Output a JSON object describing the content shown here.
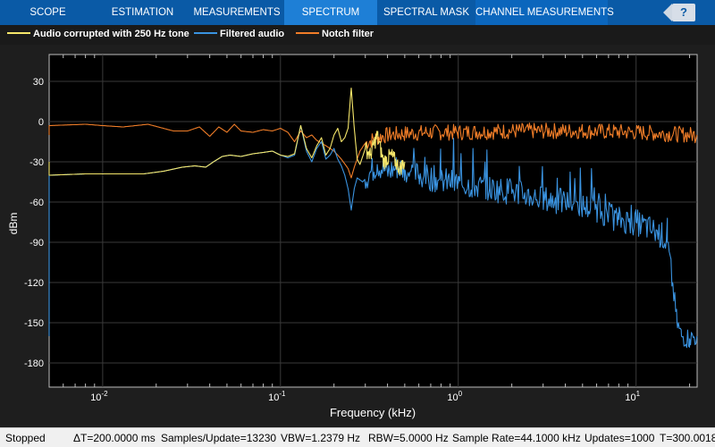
{
  "tabs": [
    {
      "label": "SCOPE",
      "active": false
    },
    {
      "label": "ESTIMATION",
      "active": false
    },
    {
      "label": "MEASUREMENTS",
      "active": false
    },
    {
      "label": "SPECTRUM",
      "active": true
    },
    {
      "label": "SPECTRAL MASK",
      "active": false
    },
    {
      "label": "CHANNEL MEASUREMENTS",
      "active": false
    }
  ],
  "help_label": "?",
  "legend": [
    {
      "label": "Audio corrupted with 250 Hz tone",
      "color": "#f5e66a"
    },
    {
      "label": "Filtered audio",
      "color": "#3a93e0"
    },
    {
      "label": "Notch filter",
      "color": "#f07d28"
    }
  ],
  "chart_data": {
    "type": "line",
    "xlabel": "Frequency (kHz)",
    "ylabel": "dBm",
    "xscale": "log",
    "xlim": [
      0.005,
      22.05
    ],
    "ylim": [
      -198,
      50
    ],
    "xticks": [
      {
        "value": 0.01,
        "base": "10",
        "exp": "-2"
      },
      {
        "value": 0.1,
        "base": "10",
        "exp": "-1"
      },
      {
        "value": 1,
        "base": "10",
        "exp": "0"
      },
      {
        "value": 10,
        "base": "10",
        "exp": "1"
      }
    ],
    "yticks": [
      30,
      0,
      -30,
      -60,
      -90,
      -120,
      -150,
      -180
    ],
    "grid": true,
    "series": [
      {
        "name": "Audio corrupted with 250 Hz tone",
        "color": "#f5e66a",
        "points": [
          [
            0.005,
            -40
          ],
          [
            0.008,
            -39
          ],
          [
            0.012,
            -39
          ],
          [
            0.017,
            -39
          ],
          [
            0.022,
            -37
          ],
          [
            0.028,
            -34
          ],
          [
            0.033,
            -33
          ],
          [
            0.038,
            -34
          ],
          [
            0.042,
            -30
          ],
          [
            0.047,
            -26
          ],
          [
            0.052,
            -25
          ],
          [
            0.06,
            -26
          ],
          [
            0.07,
            -24
          ],
          [
            0.08,
            -23
          ],
          [
            0.09,
            -22
          ],
          [
            0.1,
            -25
          ],
          [
            0.11,
            -26
          ],
          [
            0.12,
            -24
          ],
          [
            0.13,
            -3
          ],
          [
            0.14,
            -20
          ],
          [
            0.15,
            -27
          ],
          [
            0.16,
            -18
          ],
          [
            0.17,
            -12
          ],
          [
            0.18,
            -25
          ],
          [
            0.19,
            -20
          ],
          [
            0.2,
            -10
          ],
          [
            0.21,
            -5
          ],
          [
            0.22,
            -15
          ],
          [
            0.23,
            -12
          ],
          [
            0.24,
            -5
          ],
          [
            0.25,
            25
          ],
          [
            0.26,
            -5
          ],
          [
            0.27,
            -28
          ],
          [
            0.28,
            -32
          ],
          [
            0.3,
            -20
          ],
          [
            0.32,
            -25
          ],
          [
            0.35,
            -10
          ],
          [
            0.38,
            -30
          ],
          [
            0.42,
            -25
          ],
          [
            0.47,
            -35
          ],
          [
            0.5,
            -30
          ]
        ]
      },
      {
        "name": "Filtered audio",
        "color": "#3a93e0",
        "points": [
          [
            0.005,
            -40
          ],
          [
            0.008,
            -39
          ],
          [
            0.012,
            -39
          ],
          [
            0.017,
            -39
          ],
          [
            0.022,
            -37
          ],
          [
            0.028,
            -34
          ],
          [
            0.033,
            -33
          ],
          [
            0.038,
            -34
          ],
          [
            0.042,
            -30
          ],
          [
            0.047,
            -26
          ],
          [
            0.052,
            -25
          ],
          [
            0.06,
            -26
          ],
          [
            0.07,
            -24
          ],
          [
            0.08,
            -23
          ],
          [
            0.09,
            -22
          ],
          [
            0.1,
            -25
          ],
          [
            0.11,
            -27
          ],
          [
            0.12,
            -25
          ],
          [
            0.13,
            -3
          ],
          [
            0.14,
            -22
          ],
          [
            0.15,
            -30
          ],
          [
            0.16,
            -20
          ],
          [
            0.17,
            -15
          ],
          [
            0.18,
            -28
          ],
          [
            0.19,
            -25
          ],
          [
            0.2,
            -20
          ],
          [
            0.21,
            -28
          ],
          [
            0.22,
            -33
          ],
          [
            0.23,
            -40
          ],
          [
            0.24,
            -50
          ],
          [
            0.25,
            -66
          ],
          [
            0.26,
            -50
          ],
          [
            0.27,
            -42
          ],
          [
            0.29,
            -45
          ],
          [
            0.32,
            -38
          ],
          [
            0.35,
            -32
          ],
          [
            0.4,
            -38
          ],
          [
            0.45,
            -34
          ],
          [
            0.5,
            -36
          ],
          [
            0.6,
            -40
          ],
          [
            0.7,
            -42
          ],
          [
            0.8,
            -44
          ],
          [
            1,
            -46
          ],
          [
            1.5,
            -50
          ],
          [
            2,
            -52
          ],
          [
            3,
            -58
          ],
          [
            4,
            -60
          ],
          [
            5,
            -63
          ],
          [
            6,
            -65
          ],
          [
            7,
            -70
          ],
          [
            8,
            -73
          ],
          [
            10,
            -75
          ],
          [
            12,
            -80
          ],
          [
            14,
            -85
          ],
          [
            15,
            -90
          ],
          [
            16,
            -120
          ],
          [
            17,
            -150
          ],
          [
            18,
            -160
          ],
          [
            20,
            -162
          ],
          [
            22,
            -160
          ]
        ]
      },
      {
        "name": "Notch filter",
        "color": "#f07d28",
        "points": [
          [
            0.005,
            -3
          ],
          [
            0.008,
            -2
          ],
          [
            0.01,
            -3
          ],
          [
            0.013,
            -4
          ],
          [
            0.018,
            -2
          ],
          [
            0.025,
            -7
          ],
          [
            0.03,
            -7
          ],
          [
            0.035,
            -4
          ],
          [
            0.04,
            -11
          ],
          [
            0.045,
            -4
          ],
          [
            0.05,
            -8
          ],
          [
            0.055,
            -2
          ],
          [
            0.06,
            -7
          ],
          [
            0.07,
            -8
          ],
          [
            0.08,
            -6
          ],
          [
            0.09,
            -7
          ],
          [
            0.1,
            -5
          ],
          [
            0.11,
            -8
          ],
          [
            0.12,
            -15
          ],
          [
            0.13,
            -7
          ],
          [
            0.14,
            -12
          ],
          [
            0.15,
            -10
          ],
          [
            0.16,
            -14
          ],
          [
            0.18,
            -18
          ],
          [
            0.2,
            -22
          ],
          [
            0.22,
            -28
          ],
          [
            0.24,
            -35
          ],
          [
            0.25,
            -42
          ],
          [
            0.26,
            -34
          ],
          [
            0.28,
            -22
          ],
          [
            0.3,
            -16
          ],
          [
            0.35,
            -12
          ],
          [
            0.4,
            -10
          ],
          [
            0.5,
            -9
          ],
          [
            0.7,
            -8
          ],
          [
            1,
            -8
          ],
          [
            2,
            -7
          ],
          [
            5,
            -7
          ],
          [
            10,
            -8
          ],
          [
            15,
            -9
          ],
          [
            22,
            -10
          ]
        ]
      }
    ]
  },
  "status": {
    "state": "Stopped",
    "delta_t": "ΔT=200.0000 ms",
    "samples": "Samples/Update=13230",
    "vbw": "VBW=1.2379 Hz",
    "rbw": "RBW=5.0000 Hz",
    "sample_rate": "Sample Rate=44.1000 kHz",
    "updates": "Updates=1000",
    "t": "T=300.0018"
  }
}
